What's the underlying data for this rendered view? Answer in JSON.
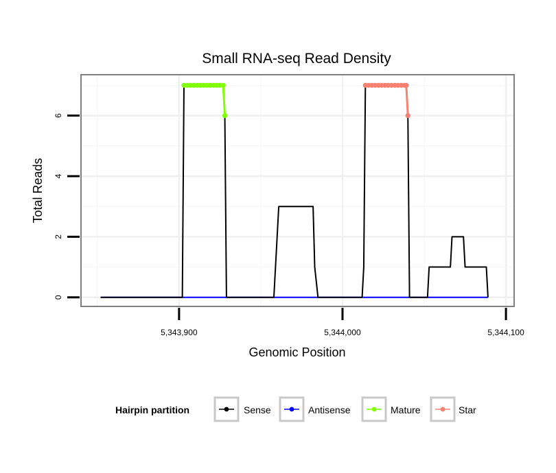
{
  "chart_data": {
    "type": "line",
    "title": "Small RNA-seq Read Density",
    "xlabel": "Genomic Position",
    "ylabel": "Total Reads",
    "xlim": [
      5343840,
      5344105
    ],
    "ylim": [
      -0.3,
      7.35
    ],
    "x_ticks": [
      5343900,
      5344000,
      5344100
    ],
    "x_tick_labels": [
      "5,343,900",
      "5,344,000",
      "5,344,100"
    ],
    "y_ticks": [
      0,
      2,
      4,
      6
    ],
    "y_tick_labels": [
      "0",
      "2",
      "4",
      "6"
    ],
    "grid": true,
    "legend": {
      "title": "Hairpin partition",
      "position": "bottom",
      "entries": [
        {
          "label": "Sense",
          "color": "#000000"
        },
        {
          "label": "Antisense",
          "color": "#0000ff"
        },
        {
          "label": "Mature",
          "color": "#7fff00"
        },
        {
          "label": "Star",
          "color": "#fa8072"
        }
      ]
    },
    "series": [
      {
        "name": "Sense",
        "color": "#000000",
        "points": [
          [
            5343852,
            0
          ],
          [
            5343902,
            0
          ],
          [
            5343903,
            7
          ],
          [
            5343927,
            7
          ],
          [
            5343928,
            6
          ],
          [
            5343929,
            0
          ],
          [
            5343958,
            0
          ],
          [
            5343960,
            2
          ],
          [
            5343961,
            3
          ],
          [
            5343967,
            3
          ],
          [
            5343982,
            3
          ],
          [
            5343983,
            1
          ],
          [
            5343985,
            0
          ],
          [
            5344012,
            0
          ],
          [
            5344013,
            1
          ],
          [
            5344014,
            7
          ],
          [
            5344039,
            7
          ],
          [
            5344040,
            6
          ],
          [
            5344041,
            0
          ],
          [
            5344052,
            0
          ],
          [
            5344053,
            1
          ],
          [
            5344066,
            1
          ],
          [
            5344067,
            2
          ],
          [
            5344074,
            2
          ],
          [
            5344075,
            1
          ],
          [
            5344088,
            1
          ],
          [
            5344089,
            0
          ]
        ]
      },
      {
        "name": "Antisense",
        "color": "#0000ff",
        "points": [
          [
            5343852,
            0
          ],
          [
            5344089,
            0
          ]
        ]
      },
      {
        "name": "Mature",
        "color": "#7fff00",
        "points": [
          [
            5343903,
            7
          ],
          [
            5343905,
            7
          ],
          [
            5343907,
            7
          ],
          [
            5343909,
            7
          ],
          [
            5343911,
            7
          ],
          [
            5343913,
            7
          ],
          [
            5343915,
            7
          ],
          [
            5343917,
            7
          ],
          [
            5343919,
            7
          ],
          [
            5343921,
            7
          ],
          [
            5343923,
            7
          ],
          [
            5343925,
            7
          ],
          [
            5343927,
            7
          ],
          [
            5343928,
            6
          ]
        ],
        "markers_at": [
          [
            5343928,
            6
          ]
        ]
      },
      {
        "name": "Star",
        "color": "#fa8072",
        "points": [
          [
            5344014,
            7
          ],
          [
            5344016,
            7
          ],
          [
            5344018,
            7
          ],
          [
            5344020,
            7
          ],
          [
            5344022,
            7
          ],
          [
            5344024,
            7
          ],
          [
            5344026,
            7
          ],
          [
            5344028,
            7
          ],
          [
            5344030,
            7
          ],
          [
            5344032,
            7
          ],
          [
            5344034,
            7
          ],
          [
            5344036,
            7
          ],
          [
            5344038,
            7
          ],
          [
            5344039,
            7
          ],
          [
            5344040,
            6
          ]
        ],
        "markers_at": [
          [
            5344040,
            6
          ]
        ]
      }
    ]
  }
}
